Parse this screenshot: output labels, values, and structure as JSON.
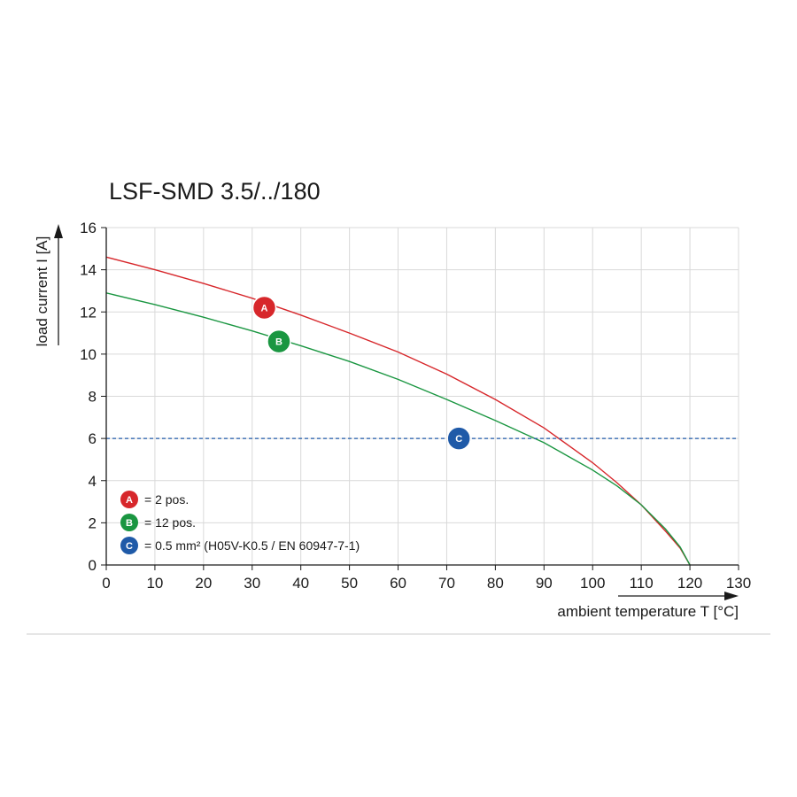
{
  "chart_data": {
    "type": "line",
    "title": "LSF-SMD 3.5/../180",
    "xlabel": "ambient temperature T [°C]",
    "ylabel": "load current I [A]",
    "xlim": [
      0,
      130
    ],
    "ylim": [
      0,
      16
    ],
    "xticks": [
      "0",
      "10",
      "20",
      "30",
      "40",
      "50",
      "60",
      "70",
      "80",
      "90",
      "100",
      "110",
      "120",
      "130"
    ],
    "yticks": [
      "0",
      "2",
      "4",
      "6",
      "8",
      "10",
      "12",
      "14",
      "16"
    ],
    "grid": true,
    "series": [
      {
        "name": "A",
        "color": "#d7272b",
        "x": [
          0,
          10,
          20,
          30,
          40,
          50,
          60,
          70,
          80,
          90,
          100,
          105,
          110,
          115,
          118,
          120
        ],
        "y": [
          14.6,
          14.0,
          13.35,
          12.65,
          11.85,
          11.0,
          10.1,
          9.05,
          7.85,
          6.5,
          4.85,
          3.9,
          2.85,
          1.6,
          0.8,
          0.0
        ]
      },
      {
        "name": "B",
        "color": "#1a9641",
        "x": [
          0,
          10,
          20,
          30,
          40,
          50,
          60,
          70,
          80,
          90,
          100,
          105,
          110,
          115,
          118,
          120
        ],
        "y": [
          12.9,
          12.35,
          11.75,
          11.1,
          10.4,
          9.65,
          8.8,
          7.85,
          6.85,
          5.8,
          4.5,
          3.75,
          2.85,
          1.7,
          0.85,
          0.0
        ]
      },
      {
        "name": "C",
        "color": "#1f5aa8",
        "dashed": true,
        "x": [
          0,
          130
        ],
        "y": [
          6,
          6
        ]
      }
    ],
    "markers": [
      {
        "label": "A",
        "x": 32.5,
        "y": 12.2,
        "color": "#d7272b"
      },
      {
        "label": "B",
        "x": 35.5,
        "y": 10.6,
        "color": "#1a9641"
      },
      {
        "label": "C",
        "x": 72.5,
        "y": 6.0,
        "color": "#1f5aa8"
      }
    ],
    "legend": {
      "placement": "bottom-left",
      "entries": [
        {
          "label": "A",
          "text": "= 2 pos.",
          "color": "#d7272b"
        },
        {
          "label": "B",
          "text": "= 12 pos.",
          "color": "#1a9641"
        },
        {
          "label": "C",
          "text": "= 0.5 mm² (H05V-K0.5 / EN 60947-7-1)",
          "color": "#1f5aa8"
        }
      ]
    }
  }
}
